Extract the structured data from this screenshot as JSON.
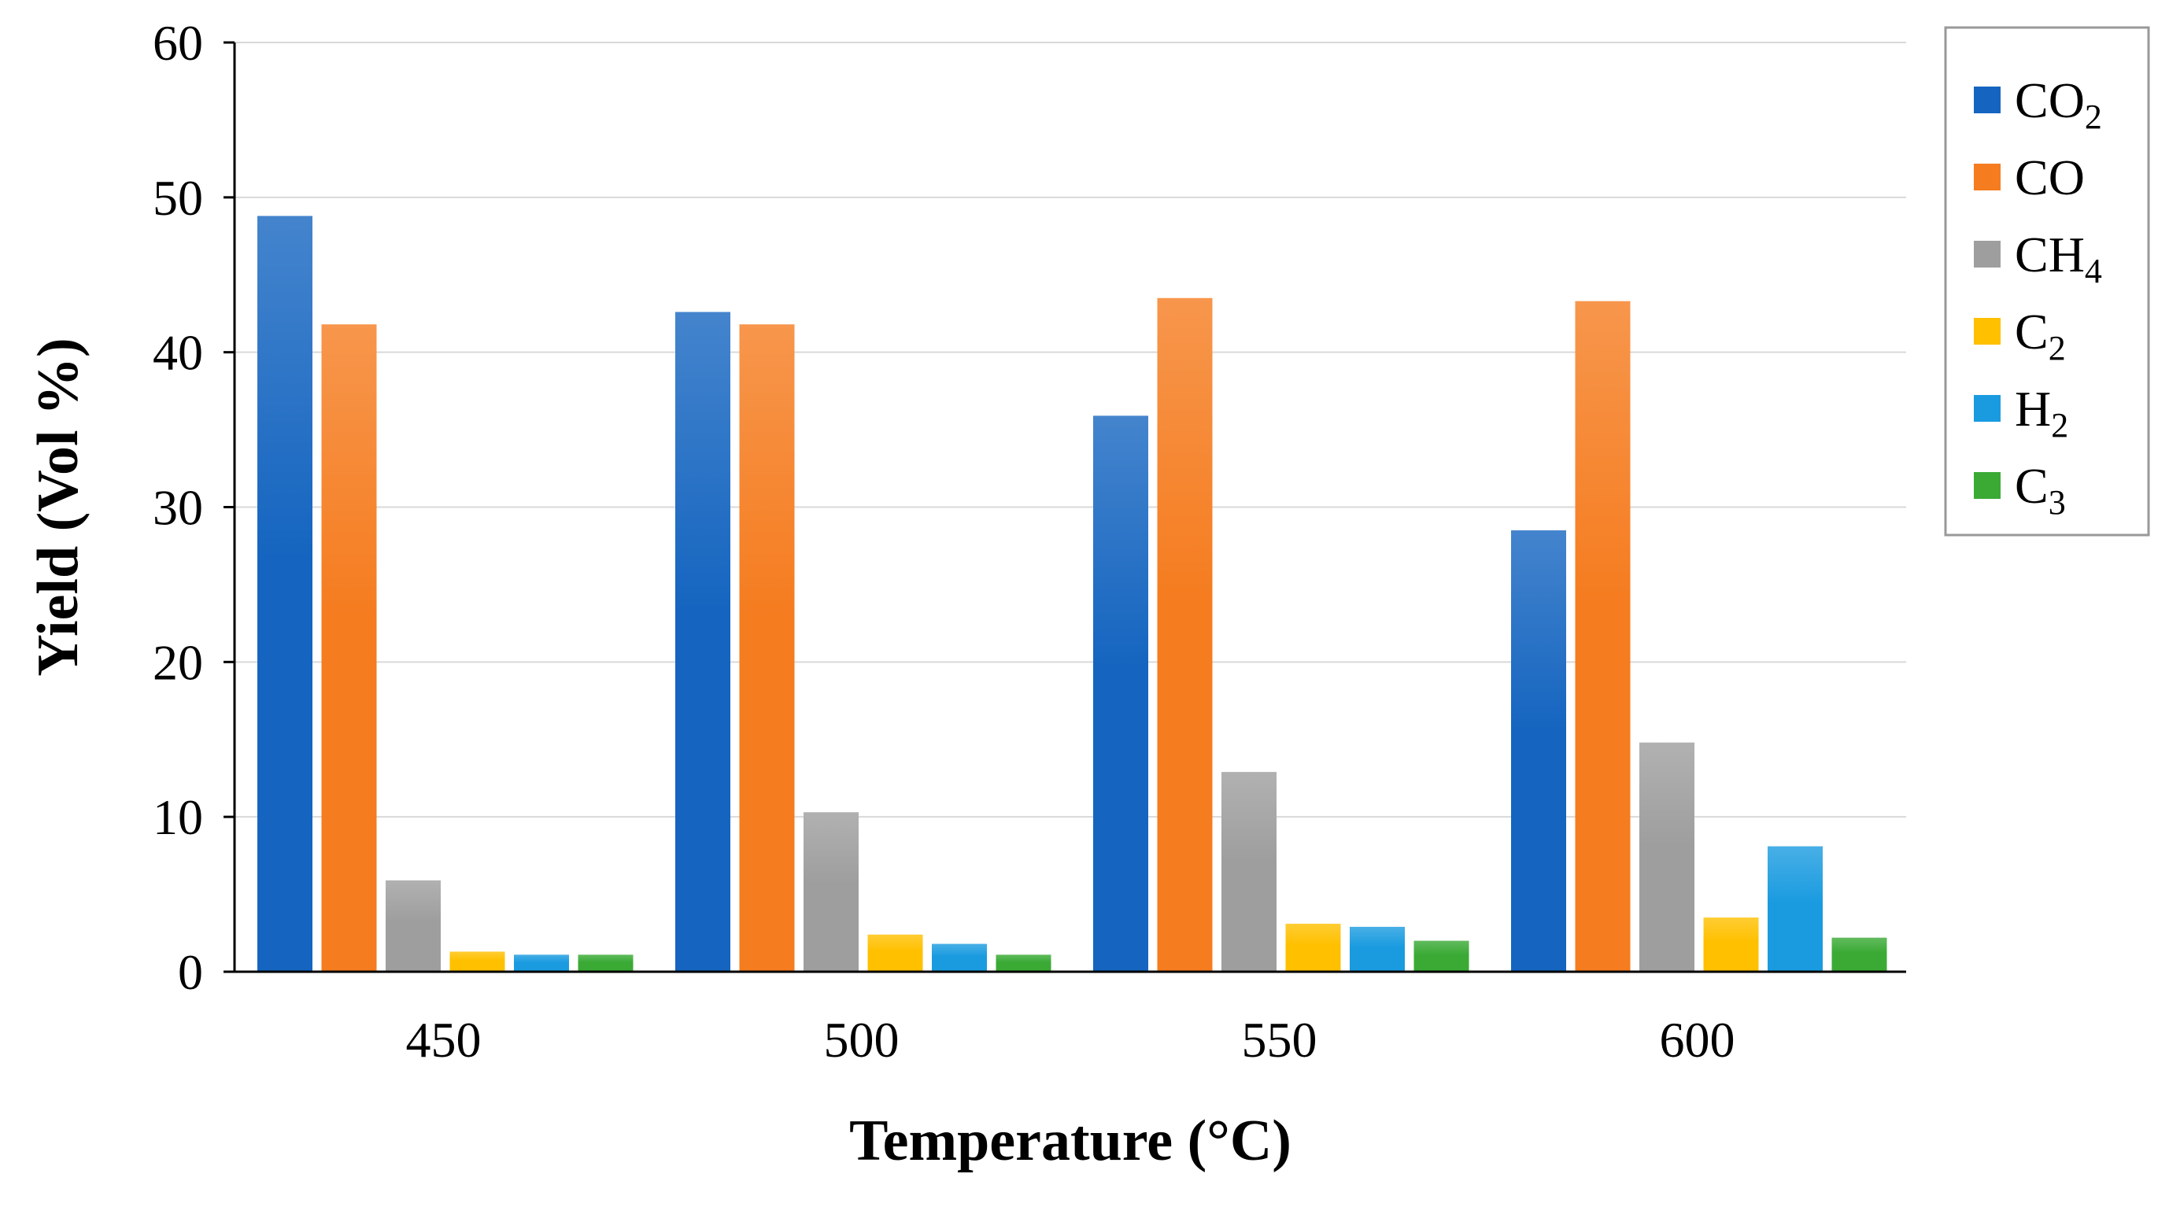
{
  "chart_data": {
    "type": "bar",
    "title": "",
    "xlabel": "Temperature (°C)",
    "ylabel": "Yield (Vol %)",
    "ylim": [
      0,
      60
    ],
    "yticks": [
      0,
      10,
      20,
      30,
      40,
      50,
      60
    ],
    "grid": true,
    "legend_position": "right",
    "categories": [
      "450",
      "500",
      "550",
      "600"
    ],
    "series": [
      {
        "name": "CO",
        "sub": "2",
        "color": "#1565c0",
        "values": [
          48.8,
          42.6,
          35.9,
          28.5
        ]
      },
      {
        "name": "CO",
        "sub": "",
        "color": "#f57c1f",
        "values": [
          41.8,
          41.8,
          43.5,
          43.3
        ]
      },
      {
        "name": "CH",
        "sub": "4",
        "color": "#9e9e9e",
        "values": [
          5.9,
          10.3,
          12.9,
          14.8
        ]
      },
      {
        "name": "C",
        "sub": "2",
        "color": "#ffc000",
        "values": [
          1.3,
          2.4,
          3.1,
          3.5
        ]
      },
      {
        "name": "H",
        "sub": "2",
        "color": "#1a9be0",
        "values": [
          1.1,
          1.8,
          2.9,
          8.1
        ]
      },
      {
        "name": "C",
        "sub": "3",
        "color": "#3aaa35",
        "values": [
          1.1,
          1.1,
          2.0,
          2.2
        ]
      }
    ]
  }
}
